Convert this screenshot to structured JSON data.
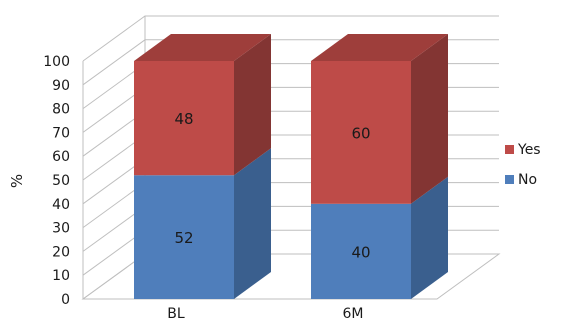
{
  "chart_data": {
    "type": "bar",
    "stacked": true,
    "three_d": true,
    "categories": [
      "BL",
      "6M"
    ],
    "series": [
      {
        "name": "No",
        "values": [
          52,
          40
        ],
        "color": "#4F7EBB",
        "side_color": "#3A5F8E",
        "top_color": "#4472A8"
      },
      {
        "name": "Yes",
        "values": [
          48,
          60
        ],
        "color": "#BE4B48",
        "side_color": "#833533",
        "top_color": "#9E3E3B"
      }
    ],
    "ylabel": "%",
    "ylim": [
      0,
      100
    ],
    "yticks": [
      0,
      10,
      20,
      30,
      40,
      50,
      60,
      70,
      80,
      90,
      100
    ],
    "grid": true,
    "legend_position": "right",
    "legend_order": [
      "Yes",
      "No"
    ]
  }
}
